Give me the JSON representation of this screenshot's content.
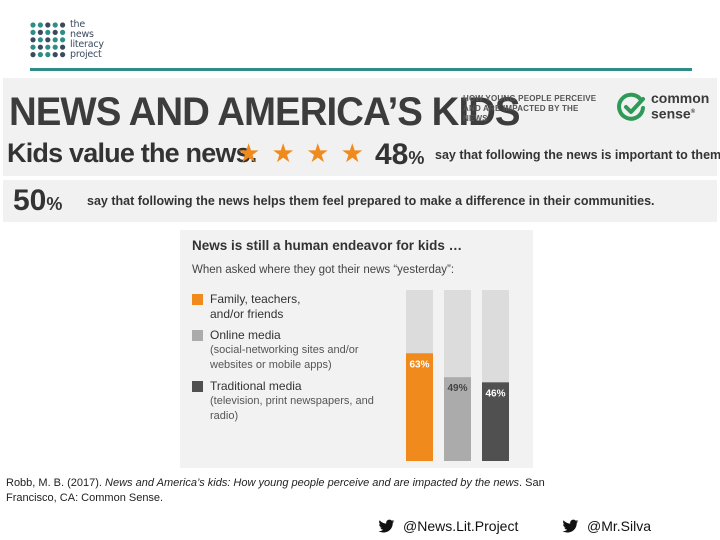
{
  "logo": {
    "lines": [
      "the",
      "news",
      "literacy",
      "project"
    ]
  },
  "banner": {
    "title": "NEWS AND AMERICA’S KIDS",
    "subtitle": "HOW YOUNG PEOPLE PERCEIVE AND ARE IMPACTED BY THE NEWS",
    "brand_line1": "common",
    "brand_line2": "sense",
    "brand_reg": "®",
    "kids_value": "Kids value the news.",
    "stars": "★ ★ ★ ★",
    "stat1_number": "48",
    "stat1_pct": "%",
    "stat1_text": "say that following the news is important to them.",
    "stat2_number": "50",
    "stat2_pct": "%",
    "stat2_text": "say that following the news helps them feel prepared to make a difference in their communities."
  },
  "chart_data": {
    "type": "bar",
    "title": "News is still a human endeavor for kids …",
    "subtitle": "When asked where they got their news “yesterday”:",
    "categories": [
      "Family, teachers, and/or friends",
      "Online media",
      "Traditional media"
    ],
    "values": [
      63,
      49,
      46
    ],
    "value_labels": [
      "63%",
      "49%",
      "46%"
    ],
    "ylim": [
      0,
      100
    ],
    "legend": [
      {
        "label": "Family, teachers, and/or friends",
        "description": "",
        "color": "#f08a1c"
      },
      {
        "label": "Online media",
        "description": "(social-networking sites and/or websites or mobile apps)",
        "color": "#ababab"
      },
      {
        "label": "Traditional media",
        "description": "(television, print newspapers, and radio)",
        "color": "#505050"
      }
    ],
    "background_bar_color": "#dcdcdc",
    "legend_position": "left"
  },
  "citation": {
    "text_plain1": "Robb, M. B. (2017). ",
    "text_italic": "News and America’s kids: How young people perceive and are impacted by the news",
    "text_plain2": ". San Francisco, CA: Common Sense."
  },
  "footer": {
    "handle1": "@News.Lit.Project",
    "handle2": "@Mr.Silva",
    "icon": "twitter-bird-icon"
  },
  "colors": {
    "accent_teal": "#2e8d86",
    "accent_orange": "#f08a1c",
    "brand_green": "#2f9a57"
  }
}
